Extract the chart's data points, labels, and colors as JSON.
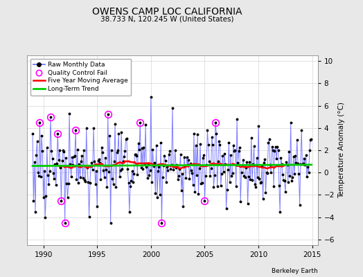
{
  "title": "OWENS CAMP LOC CALIFORNIA",
  "subtitle": "38.733 N, 120.245 W (United States)",
  "ylabel": "Temperature Anomaly (°C)",
  "credit": "Berkeley Earth",
  "xlim": [
    1988.5,
    2015.5
  ],
  "ylim": [
    -6.5,
    10.5
  ],
  "yticks": [
    -6,
    -4,
    -2,
    0,
    2,
    4,
    6,
    8,
    10
  ],
  "xticks": [
    1990,
    1995,
    2000,
    2005,
    2010,
    2015
  ],
  "bg_color": "#e8e8e8",
  "plot_bg_color": "#ffffff",
  "raw_line_color": "#6666ff",
  "raw_dot_color": "#000000",
  "ma_color": "#ff0000",
  "trend_color": "#00cc00",
  "qc_color": "#ff00ff",
  "seed": 17
}
